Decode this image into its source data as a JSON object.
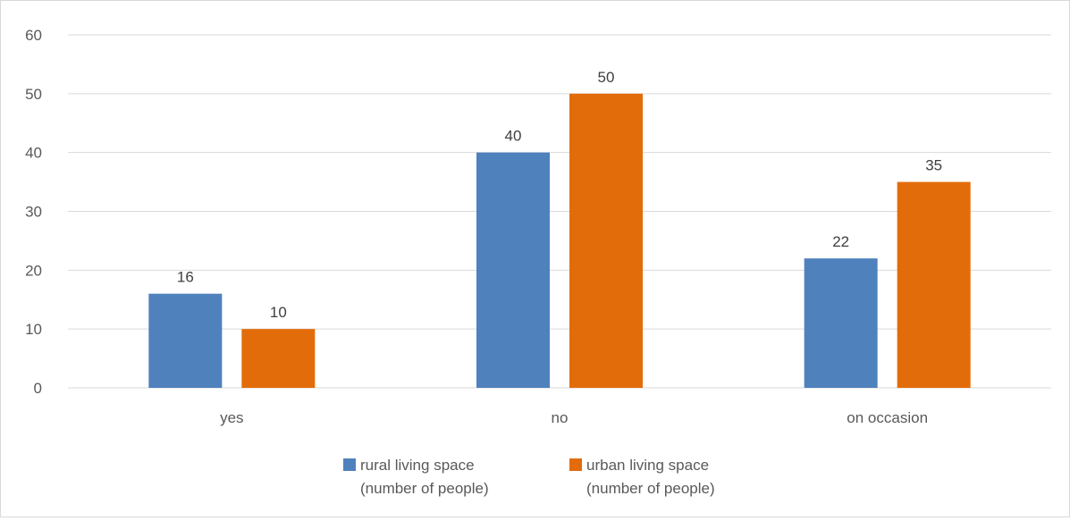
{
  "chart_data": {
    "type": "bar",
    "title": "",
    "xlabel": "",
    "ylabel": "",
    "categories": [
      "yes",
      "no",
      "on occasion"
    ],
    "series": [
      {
        "name": "rural living space (number of people)",
        "name_lines": [
          "rural living space",
          "(number of people)"
        ],
        "color": "#4f81bd",
        "values": [
          16,
          40,
          22
        ]
      },
      {
        "name": "urban living space (number of people)",
        "name_lines": [
          "urban living space",
          "(number of people)"
        ],
        "color": "#e36c0a",
        "values": [
          10,
          50,
          35
        ]
      }
    ],
    "ylim": [
      0,
      60
    ],
    "yticks": [
      0,
      10,
      20,
      30,
      40,
      50,
      60
    ],
    "grid": true,
    "data_labels": true,
    "legend_position": "bottom"
  }
}
